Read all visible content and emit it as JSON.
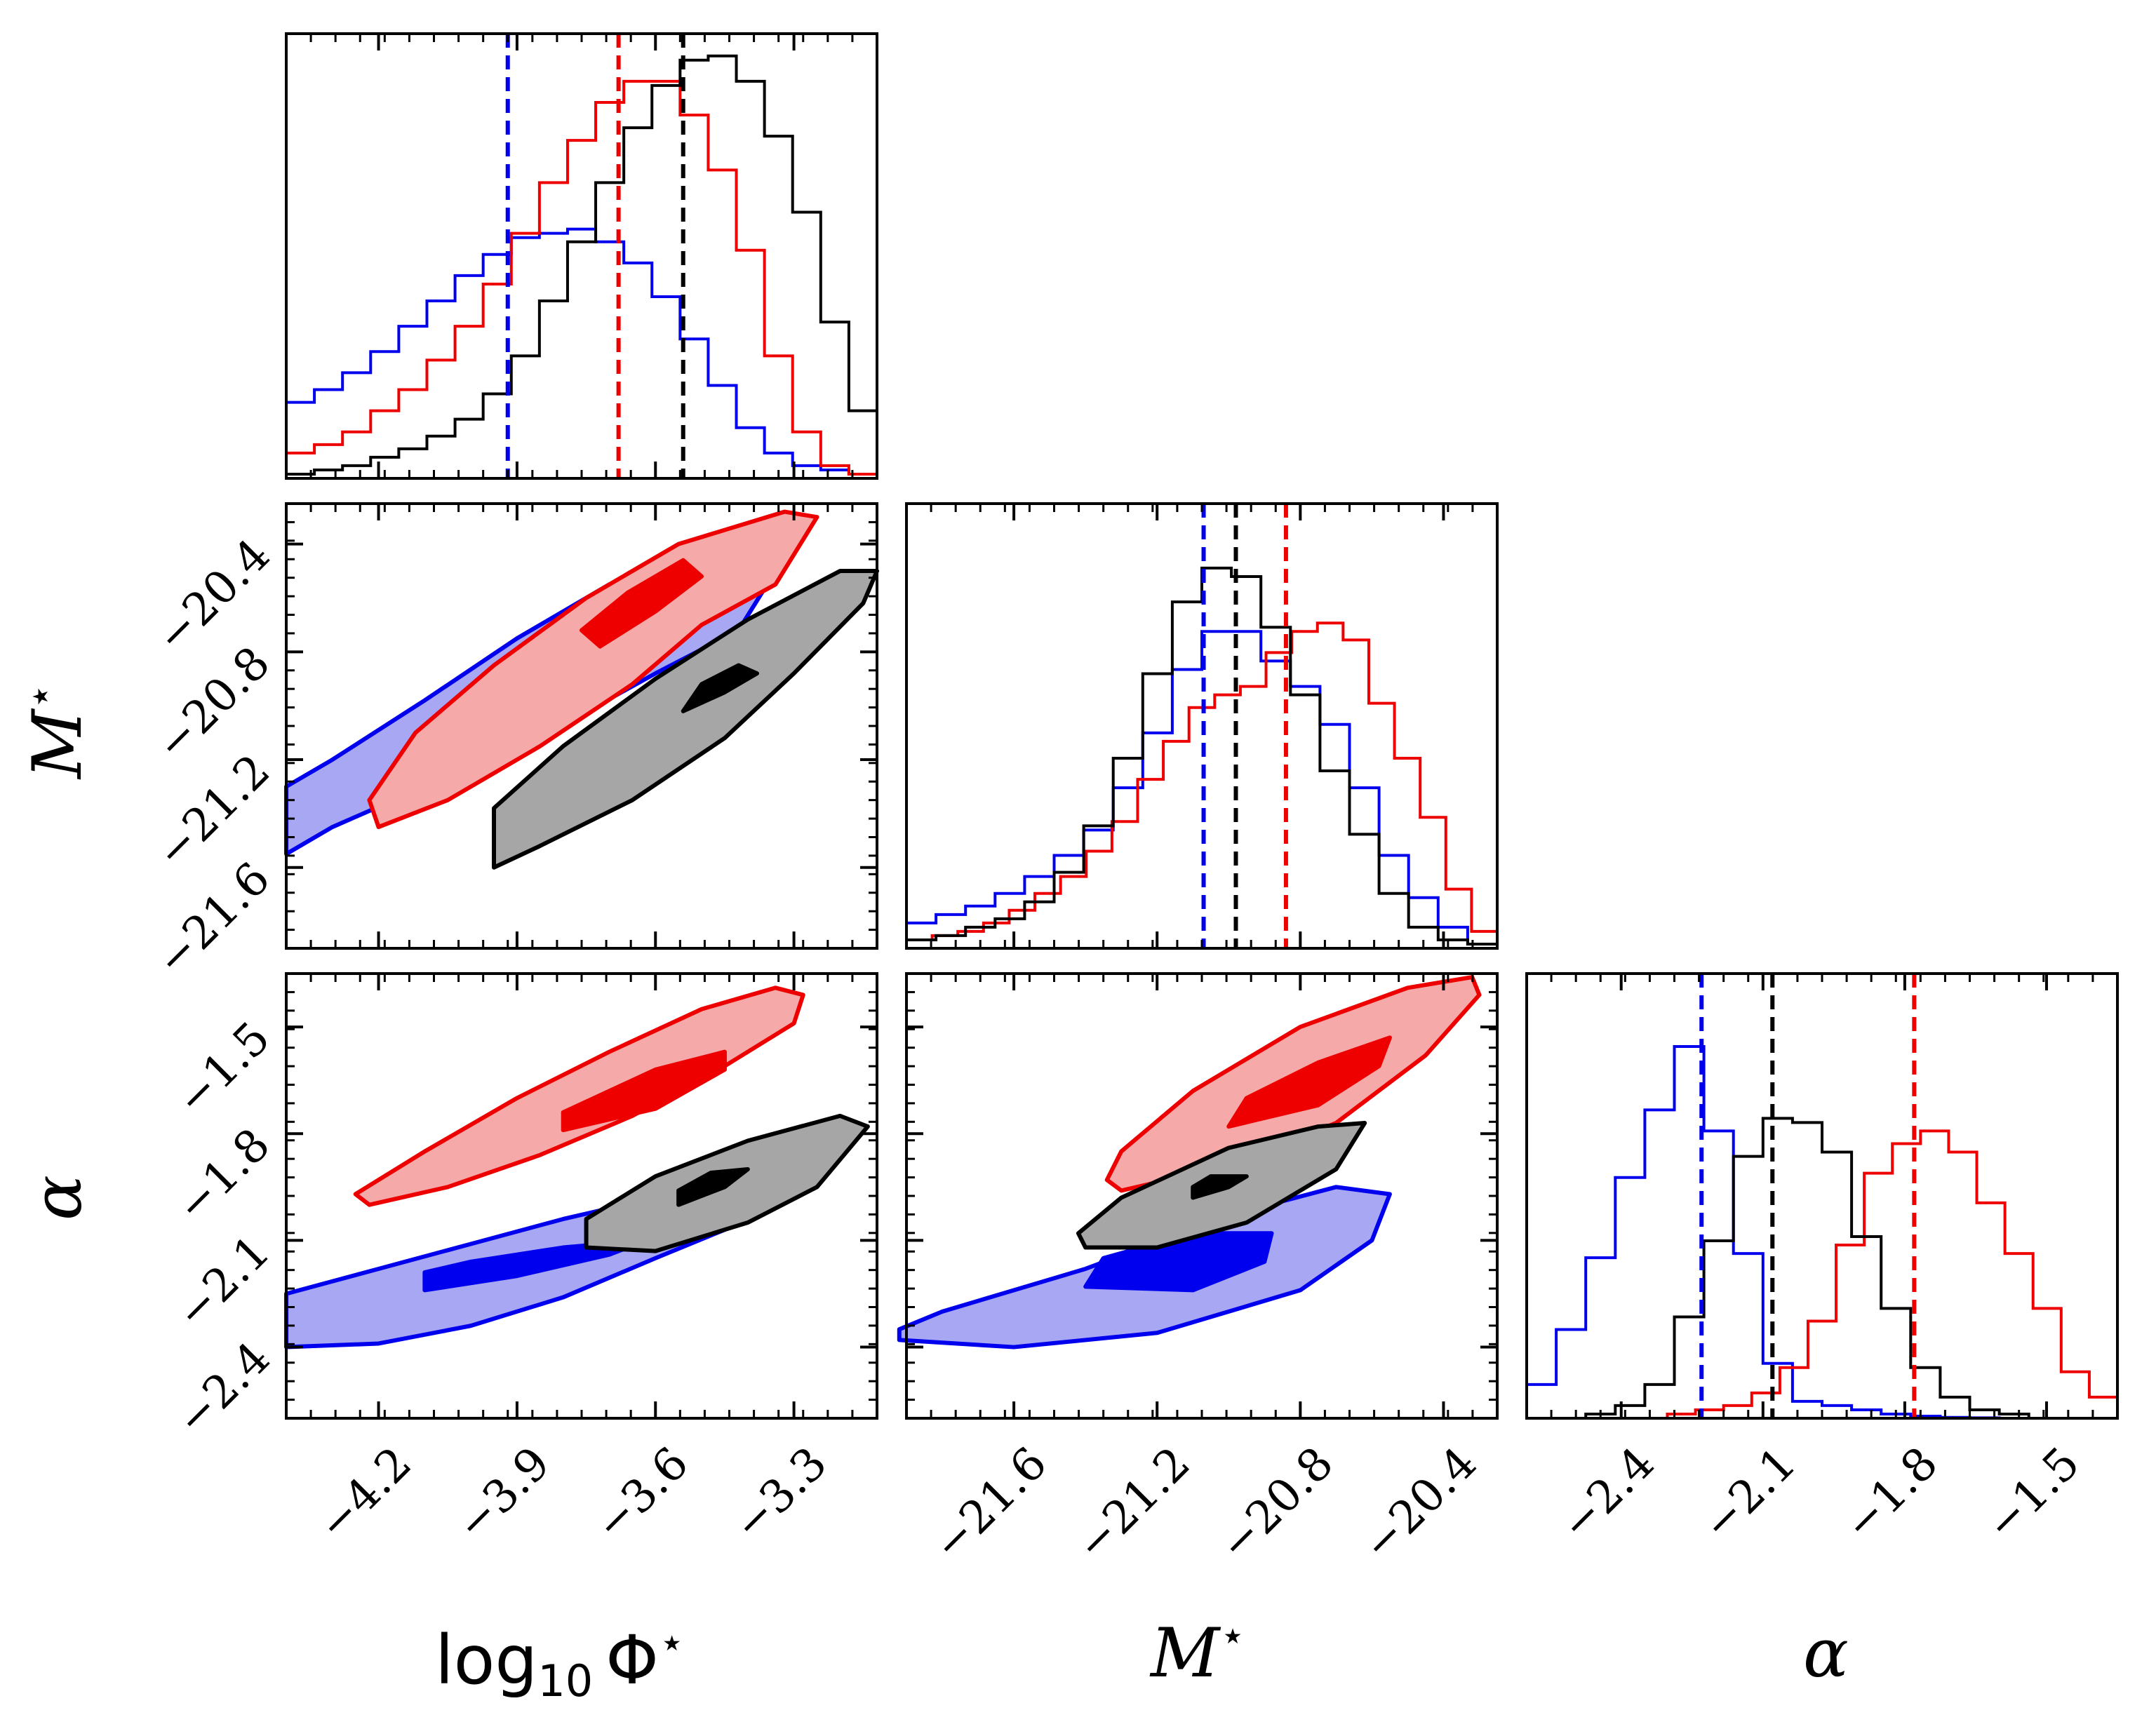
{
  "chart_data": {
    "type": "corner",
    "parameters": [
      {
        "key": "logphi",
        "range": [
          -4.4,
          -3.12
        ],
        "ticks": [
          -4.2,
          -3.9,
          -3.6,
          -3.3
        ],
        "tick_labels": [
          "−4.2",
          "−3.9",
          "−3.6",
          "−3.3"
        ],
        "xlabel_main": "log",
        "xlabel_sub": "10",
        "xlabel_tail": "Φ",
        "xlabel_sup": "⋆"
      },
      {
        "key": "mstar",
        "range": [
          -21.9,
          -20.25
        ],
        "ticks": [
          -21.6,
          -21.2,
          -20.8,
          -20.4
        ],
        "tick_labels": [
          "−21.6",
          "−21.2",
          "−20.8",
          "−20.4"
        ],
        "ylabel_main": "M",
        "ylabel_sup": "⋆"
      },
      {
        "key": "alpha",
        "range": [
          -2.6,
          -1.35
        ],
        "ticks": [
          -2.4,
          -2.1,
          -1.8,
          -1.5
        ],
        "tick_labels": [
          "−2.4",
          "−2.1",
          "−1.8",
          "−1.5"
        ],
        "ylabel_main": "α"
      }
    ],
    "colors": {
      "blue": "#0000ee",
      "red": "#ee0000",
      "black": "#000000"
    },
    "series": [
      {
        "name": "blue",
        "color": "#0000ee",
        "fill": "#a7a7f4",
        "inner_fill": "#0000ee",
        "medians": {
          "logphi": -3.92,
          "mstar": -21.07,
          "alpha": -2.23
        },
        "hist_logphi": [
          0.18,
          0.21,
          0.25,
          0.3,
          0.36,
          0.42,
          0.48,
          0.53,
          0.57,
          0.58,
          0.59,
          0.56,
          0.51,
          0.43,
          0.33,
          0.22,
          0.12,
          0.06,
          0.03,
          0.02,
          0.01
        ],
        "hist_mstar": [
          0.06,
          0.08,
          0.1,
          0.13,
          0.17,
          0.22,
          0.28,
          0.38,
          0.51,
          0.66,
          0.75,
          0.75,
          0.68,
          0.62,
          0.53,
          0.38,
          0.22,
          0.12,
          0.05,
          0.01
        ],
        "hist_alpha": [
          0.08,
          0.21,
          0.38,
          0.57,
          0.73,
          0.88,
          0.68,
          0.39,
          0.13,
          0.04,
          0.03,
          0.02,
          0.01,
          0.005,
          0.002,
          0.001,
          0.0,
          0.0,
          0.0,
          0.0
        ],
        "contour_logphi_mstar_outer": [
          [
            -4.4,
            -21.55
          ],
          [
            -4.3,
            -21.45
          ],
          [
            -4.1,
            -21.3
          ],
          [
            -3.95,
            -21.2
          ],
          [
            -3.8,
            -21.07
          ],
          [
            -3.6,
            -20.88
          ],
          [
            -3.42,
            -20.72
          ],
          [
            -3.34,
            -20.5
          ],
          [
            -3.5,
            -20.45
          ],
          [
            -3.7,
            -20.55
          ],
          [
            -3.9,
            -20.75
          ],
          [
            -4.1,
            -20.98
          ],
          [
            -4.3,
            -21.2
          ],
          [
            -4.4,
            -21.3
          ]
        ],
        "contour_logphi_mstar_inner": [
          [
            -4.0,
            -21.05
          ],
          [
            -3.85,
            -20.95
          ],
          [
            -3.8,
            -20.85
          ],
          [
            -3.92,
            -20.88
          ],
          [
            -4.0,
            -20.98
          ]
        ],
        "contour_logphi_alpha_outer": [
          [
            -4.4,
            -2.4
          ],
          [
            -4.2,
            -2.39
          ],
          [
            -4.0,
            -2.34
          ],
          [
            -3.8,
            -2.26
          ],
          [
            -3.6,
            -2.15
          ],
          [
            -3.45,
            -2.07
          ],
          [
            -3.4,
            -1.98
          ],
          [
            -3.6,
            -1.98
          ],
          [
            -3.8,
            -2.04
          ],
          [
            -4.0,
            -2.11
          ],
          [
            -4.2,
            -2.18
          ],
          [
            -4.4,
            -2.25
          ]
        ],
        "contour_logphi_alpha_inner": [
          [
            -4.1,
            -2.24
          ],
          [
            -3.9,
            -2.2
          ],
          [
            -3.7,
            -2.14
          ],
          [
            -3.62,
            -2.1
          ],
          [
            -3.8,
            -2.12
          ],
          [
            -4.0,
            -2.16
          ],
          [
            -4.1,
            -2.19
          ]
        ],
        "contour_mstar_alpha_outer": [
          [
            -21.92,
            -2.38
          ],
          [
            -21.6,
            -2.4
          ],
          [
            -21.2,
            -2.36
          ],
          [
            -20.8,
            -2.24
          ],
          [
            -20.6,
            -2.1
          ],
          [
            -20.55,
            -1.97
          ],
          [
            -20.7,
            -1.95
          ],
          [
            -21.0,
            -2.03
          ],
          [
            -21.4,
            -2.18
          ],
          [
            -21.8,
            -2.3
          ],
          [
            -21.92,
            -2.35
          ]
        ],
        "contour_mstar_alpha_inner": [
          [
            -21.4,
            -2.23
          ],
          [
            -21.1,
            -2.24
          ],
          [
            -20.9,
            -2.16
          ],
          [
            -20.88,
            -2.08
          ],
          [
            -21.1,
            -2.08
          ],
          [
            -21.35,
            -2.15
          ]
        ]
      },
      {
        "name": "red",
        "color": "#ee0000",
        "fill": "#f5a9a9",
        "inner_fill": "#ee0000",
        "medians": {
          "logphi": -3.68,
          "mstar": -20.84,
          "alpha": -1.78
        },
        "hist_logphi": [
          0.06,
          0.08,
          0.11,
          0.16,
          0.21,
          0.28,
          0.36,
          0.46,
          0.58,
          0.7,
          0.8,
          0.89,
          0.94,
          0.94,
          0.86,
          0.73,
          0.54,
          0.29,
          0.11,
          0.03,
          0.01
        ],
        "hist_mstar": [
          0.02,
          0.03,
          0.04,
          0.06,
          0.09,
          0.13,
          0.17,
          0.23,
          0.3,
          0.4,
          0.49,
          0.57,
          0.6,
          0.62,
          0.7,
          0.75,
          0.77,
          0.73,
          0.58,
          0.45,
          0.31,
          0.14,
          0.04
        ],
        "hist_alpha": [
          0.0,
          0.0,
          0.0,
          0.0,
          0.0,
          0.01,
          0.02,
          0.03,
          0.06,
          0.12,
          0.23,
          0.41,
          0.58,
          0.65,
          0.68,
          0.63,
          0.51,
          0.39,
          0.26,
          0.11,
          0.05
        ],
        "contour_logphi_mstar_outer": [
          [
            -4.2,
            -21.45
          ],
          [
            -4.05,
            -21.35
          ],
          [
            -3.85,
            -21.15
          ],
          [
            -3.65,
            -20.92
          ],
          [
            -3.5,
            -20.7
          ],
          [
            -3.34,
            -20.55
          ],
          [
            -3.25,
            -20.3
          ],
          [
            -3.32,
            -20.28
          ],
          [
            -3.55,
            -20.4
          ],
          [
            -3.75,
            -20.6
          ],
          [
            -3.95,
            -20.85
          ],
          [
            -4.12,
            -21.1
          ],
          [
            -4.22,
            -21.35
          ]
        ],
        "contour_logphi_mstar_inner": [
          [
            -3.72,
            -20.78
          ],
          [
            -3.6,
            -20.65
          ],
          [
            -3.5,
            -20.52
          ],
          [
            -3.54,
            -20.46
          ],
          [
            -3.66,
            -20.58
          ],
          [
            -3.76,
            -20.72
          ]
        ],
        "contour_logphi_alpha_outer": [
          [
            -4.22,
            -2.0
          ],
          [
            -4.05,
            -1.95
          ],
          [
            -3.85,
            -1.86
          ],
          [
            -3.65,
            -1.75
          ],
          [
            -3.45,
            -1.61
          ],
          [
            -3.3,
            -1.49
          ],
          [
            -3.28,
            -1.41
          ],
          [
            -3.34,
            -1.39
          ],
          [
            -3.5,
            -1.45
          ],
          [
            -3.7,
            -1.57
          ],
          [
            -3.9,
            -1.7
          ],
          [
            -4.1,
            -1.85
          ],
          [
            -4.25,
            -1.97
          ]
        ],
        "contour_logphi_alpha_inner": [
          [
            -3.8,
            -1.79
          ],
          [
            -3.6,
            -1.73
          ],
          [
            -3.45,
            -1.62
          ],
          [
            -3.45,
            -1.57
          ],
          [
            -3.6,
            -1.62
          ],
          [
            -3.8,
            -1.74
          ]
        ],
        "contour_mstar_alpha_outer": [
          [
            -21.3,
            -1.96
          ],
          [
            -21.0,
            -1.89
          ],
          [
            -20.7,
            -1.77
          ],
          [
            -20.45,
            -1.58
          ],
          [
            -20.3,
            -1.41
          ],
          [
            -20.32,
            -1.36
          ],
          [
            -20.5,
            -1.39
          ],
          [
            -20.8,
            -1.5
          ],
          [
            -21.1,
            -1.68
          ],
          [
            -21.3,
            -1.85
          ],
          [
            -21.34,
            -1.93
          ]
        ],
        "contour_mstar_alpha_inner": [
          [
            -21.0,
            -1.78
          ],
          [
            -20.75,
            -1.72
          ],
          [
            -20.58,
            -1.61
          ],
          [
            -20.55,
            -1.53
          ],
          [
            -20.75,
            -1.6
          ],
          [
            -20.95,
            -1.7
          ]
        ]
      },
      {
        "name": "black",
        "color": "#000000",
        "fill": "#a6a6a6",
        "inner_fill": "#000000",
        "medians": {
          "logphi": -3.54,
          "mstar": -20.98,
          "alpha": -2.08
        },
        "hist_logphi": [
          0.01,
          0.02,
          0.03,
          0.05,
          0.07,
          0.1,
          0.14,
          0.2,
          0.29,
          0.42,
          0.56,
          0.7,
          0.83,
          0.93,
          0.99,
          1.0,
          0.94,
          0.81,
          0.63,
          0.37,
          0.16
        ],
        "hist_mstar": [
          0.02,
          0.03,
          0.05,
          0.07,
          0.11,
          0.18,
          0.29,
          0.45,
          0.65,
          0.82,
          0.9,
          0.88,
          0.76,
          0.6,
          0.42,
          0.27,
          0.13,
          0.05,
          0.02,
          0.01
        ],
        "hist_alpha": [
          0.0,
          0.0,
          0.01,
          0.03,
          0.08,
          0.24,
          0.42,
          0.62,
          0.71,
          0.7,
          0.63,
          0.43,
          0.26,
          0.12,
          0.05,
          0.02,
          0.01,
          0.0,
          0.0,
          0.0
        ],
        "contour_logphi_mstar_outer": [
          [
            -3.95,
            -21.6
          ],
          [
            -3.85,
            -21.52
          ],
          [
            -3.65,
            -21.35
          ],
          [
            -3.45,
            -21.12
          ],
          [
            -3.3,
            -20.88
          ],
          [
            -3.15,
            -20.62
          ],
          [
            -3.12,
            -20.5
          ],
          [
            -3.2,
            -20.5
          ],
          [
            -3.4,
            -20.68
          ],
          [
            -3.6,
            -20.9
          ],
          [
            -3.8,
            -21.15
          ],
          [
            -3.95,
            -21.38
          ]
        ],
        "contour_logphi_mstar_inner": [
          [
            -3.54,
            -21.02
          ],
          [
            -3.45,
            -20.95
          ],
          [
            -3.38,
            -20.88
          ],
          [
            -3.42,
            -20.85
          ],
          [
            -3.5,
            -20.92
          ]
        ],
        "contour_logphi_alpha_outer": [
          [
            -3.75,
            -2.12
          ],
          [
            -3.6,
            -2.13
          ],
          [
            -3.4,
            -2.05
          ],
          [
            -3.25,
            -1.95
          ],
          [
            -3.14,
            -1.78
          ],
          [
            -3.2,
            -1.75
          ],
          [
            -3.4,
            -1.82
          ],
          [
            -3.6,
            -1.92
          ],
          [
            -3.75,
            -2.04
          ]
        ],
        "contour_logphi_alpha_inner": [
          [
            -3.55,
            -2.0
          ],
          [
            -3.45,
            -1.95
          ],
          [
            -3.4,
            -1.9
          ],
          [
            -3.48,
            -1.91
          ],
          [
            -3.55,
            -1.96
          ]
        ],
        "contour_mstar_alpha_outer": [
          [
            -21.4,
            -2.12
          ],
          [
            -21.2,
            -2.12
          ],
          [
            -20.95,
            -2.05
          ],
          [
            -20.7,
            -1.9
          ],
          [
            -20.62,
            -1.77
          ],
          [
            -20.75,
            -1.78
          ],
          [
            -21.0,
            -1.84
          ],
          [
            -21.3,
            -1.98
          ],
          [
            -21.42,
            -2.08
          ]
        ],
        "contour_mstar_alpha_inner": [
          [
            -21.1,
            -1.98
          ],
          [
            -21.0,
            -1.95
          ],
          [
            -20.95,
            -1.92
          ],
          [
            -21.05,
            -1.92
          ],
          [
            -21.1,
            -1.95
          ]
        ]
      }
    ]
  }
}
